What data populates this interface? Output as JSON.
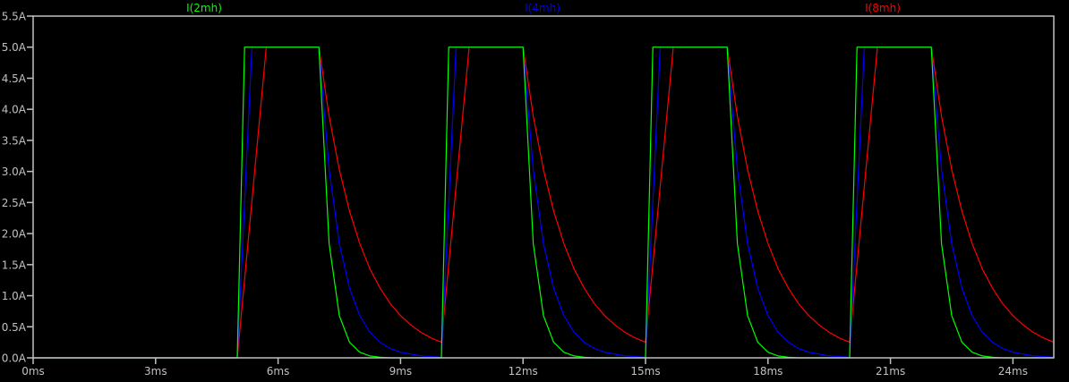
{
  "chart_data": {
    "type": "line",
    "title": "",
    "xlabel": "",
    "ylabel": "",
    "xlim": [
      0,
      25
    ],
    "ylim": [
      0,
      5.5
    ],
    "grid": false,
    "legend_placement": "top",
    "background": "#000000",
    "axis_color": "#c0c0c0",
    "x_ticks": [
      0,
      3,
      6,
      9,
      12,
      15,
      18,
      21,
      24
    ],
    "x_tick_labels": [
      "0ms",
      "3ms",
      "6ms",
      "9ms",
      "12ms",
      "15ms",
      "18ms",
      "21ms",
      "24ms"
    ],
    "y_ticks": [
      0,
      0.5,
      1,
      1.5,
      2,
      2.5,
      3,
      3.5,
      4,
      4.5,
      5,
      5.5
    ],
    "y_tick_labels": [
      "0.0A",
      "0.5A",
      "1.0A",
      "1.5A",
      "2.0A",
      "2.5A",
      "3.0A",
      "3.5A",
      "4.0A",
      "4.5A",
      "5.0A",
      "5.5A"
    ],
    "series": [
      {
        "name": "I(2mh)",
        "color": "#00ff00",
        "x": [
          0,
          5,
          5.18,
          7,
          7.25,
          7.5,
          7.75,
          8,
          8.25,
          8.5,
          8.75,
          9,
          9.25,
          9.5,
          9.75,
          10,
          10.18,
          12,
          12.25,
          12.5,
          12.75,
          13,
          13.25,
          13.5,
          13.75,
          14,
          14.25,
          14.5,
          14.75,
          15,
          15.18,
          17,
          17.25,
          17.5,
          17.75,
          18,
          18.25,
          18.5,
          18.75,
          19,
          19.25,
          19.5,
          19.75,
          20,
          20.18,
          22,
          22.25,
          22.5,
          22.75,
          23,
          23.25,
          23.5,
          23.75,
          24,
          24.25,
          24.5,
          24.75,
          25
        ],
        "y": [
          0,
          0,
          5,
          5,
          1.84,
          0.68,
          0.25,
          0.09,
          0.03,
          0.01,
          0,
          0,
          0,
          0,
          0,
          0,
          5,
          5,
          1.84,
          0.68,
          0.25,
          0.09,
          0.03,
          0.01,
          0,
          0,
          0,
          0,
          0,
          0,
          5,
          5,
          1.84,
          0.68,
          0.25,
          0.09,
          0.03,
          0.01,
          0,
          0,
          0,
          0,
          0,
          0,
          5,
          5,
          1.84,
          0.68,
          0.25,
          0.09,
          0.03,
          0.01,
          0,
          0,
          0,
          0,
          0,
          0
        ]
      },
      {
        "name": "I(4mh)",
        "color": "#0000ff",
        "x": [
          0,
          5,
          5.36,
          7,
          7.25,
          7.5,
          7.75,
          8,
          8.25,
          8.5,
          8.75,
          9,
          9.25,
          9.5,
          9.75,
          10,
          10.36,
          12,
          12.25,
          12.5,
          12.75,
          13,
          13.25,
          13.5,
          13.75,
          14,
          14.25,
          14.5,
          14.75,
          15,
          15.36,
          17,
          17.25,
          17.5,
          17.75,
          18,
          18.25,
          18.5,
          18.75,
          19,
          19.25,
          19.5,
          19.75,
          20,
          20.36,
          22,
          22.25,
          22.5,
          22.75,
          23,
          23.25,
          23.5,
          23.75,
          24,
          24.25,
          24.5,
          24.75,
          25
        ],
        "y": [
          0,
          0,
          5,
          5,
          3.03,
          1.84,
          1.12,
          0.68,
          0.41,
          0.25,
          0.15,
          0.09,
          0.06,
          0.03,
          0.02,
          0.01,
          5,
          5,
          3.03,
          1.84,
          1.12,
          0.68,
          0.41,
          0.25,
          0.15,
          0.09,
          0.06,
          0.03,
          0.02,
          0.01,
          5,
          5,
          3.03,
          1.84,
          1.12,
          0.68,
          0.41,
          0.25,
          0.15,
          0.09,
          0.06,
          0.03,
          0.02,
          0.01,
          5,
          5,
          3.03,
          1.84,
          1.12,
          0.68,
          0.41,
          0.25,
          0.15,
          0.09,
          0.06,
          0.03,
          0.02,
          0.01
        ]
      },
      {
        "name": "I(8mh)",
        "color": "#ff0000",
        "x": [
          0,
          5,
          5.71,
          7,
          7.25,
          7.5,
          7.75,
          8,
          8.25,
          8.5,
          8.75,
          9,
          9.25,
          9.5,
          9.75,
          10,
          10.68,
          12,
          12.25,
          12.5,
          12.75,
          13,
          13.25,
          13.5,
          13.75,
          14,
          14.25,
          14.5,
          14.75,
          15,
          15.68,
          17,
          17.25,
          17.5,
          17.75,
          18,
          18.25,
          18.5,
          18.75,
          19,
          19.25,
          19.5,
          19.75,
          20,
          20.68,
          22,
          22.25,
          22.5,
          22.75,
          23,
          23.25,
          23.5,
          23.75,
          24,
          24.25,
          24.5,
          24.75,
          25
        ],
        "y": [
          0,
          0,
          5,
          5,
          3.89,
          3.03,
          2.36,
          1.84,
          1.43,
          1.12,
          0.87,
          0.68,
          0.53,
          0.41,
          0.32,
          0.25,
          5,
          5,
          3.89,
          3.03,
          2.36,
          1.84,
          1.43,
          1.12,
          0.87,
          0.68,
          0.53,
          0.41,
          0.32,
          0.25,
          5,
          5,
          3.89,
          3.03,
          2.36,
          1.84,
          1.43,
          1.12,
          0.87,
          0.68,
          0.53,
          0.41,
          0.32,
          0.25,
          5,
          5,
          3.89,
          3.03,
          2.36,
          1.84,
          1.43,
          1.12,
          0.87,
          0.68,
          0.53,
          0.41,
          0.32,
          0.25
        ]
      }
    ]
  }
}
